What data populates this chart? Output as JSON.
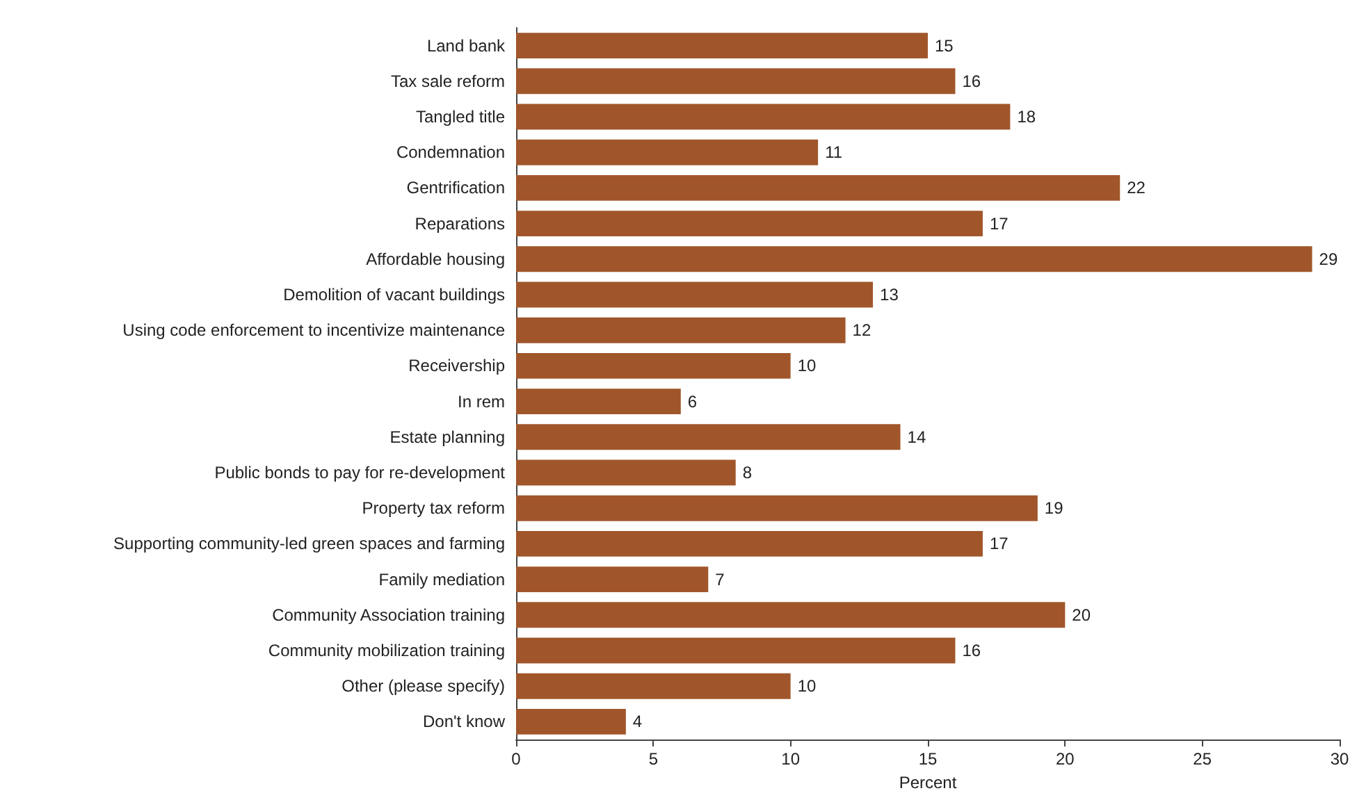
{
  "chart_data": {
    "type": "bar",
    "orientation": "horizontal",
    "xlabel": "Percent",
    "categories": [
      "Land bank",
      "Tax sale reform",
      "Tangled title",
      "Condemnation",
      "Gentrification",
      "Reparations",
      "Affordable housing",
      "Demolition of vacant buildings",
      "Using code enforcement to incentivize maintenance",
      "Receivership",
      "In rem",
      "Estate planning",
      "Public bonds to pay for re-development",
      "Property tax reform",
      "Supporting community-led green spaces and farming",
      "Family mediation",
      "Community Association training",
      "Community mobilization training",
      "Other (please specify)",
      "Don't know"
    ],
    "values": [
      15,
      16,
      18,
      11,
      22,
      17,
      29,
      13,
      12,
      10,
      6,
      14,
      8,
      19,
      17,
      7,
      20,
      16,
      10,
      4
    ],
    "color": "#a0562a",
    "xlim": [
      0,
      30
    ],
    "xticks": [
      0,
      5,
      10,
      15,
      20,
      25,
      30
    ],
    "data_labels": true,
    "grid": false
  }
}
